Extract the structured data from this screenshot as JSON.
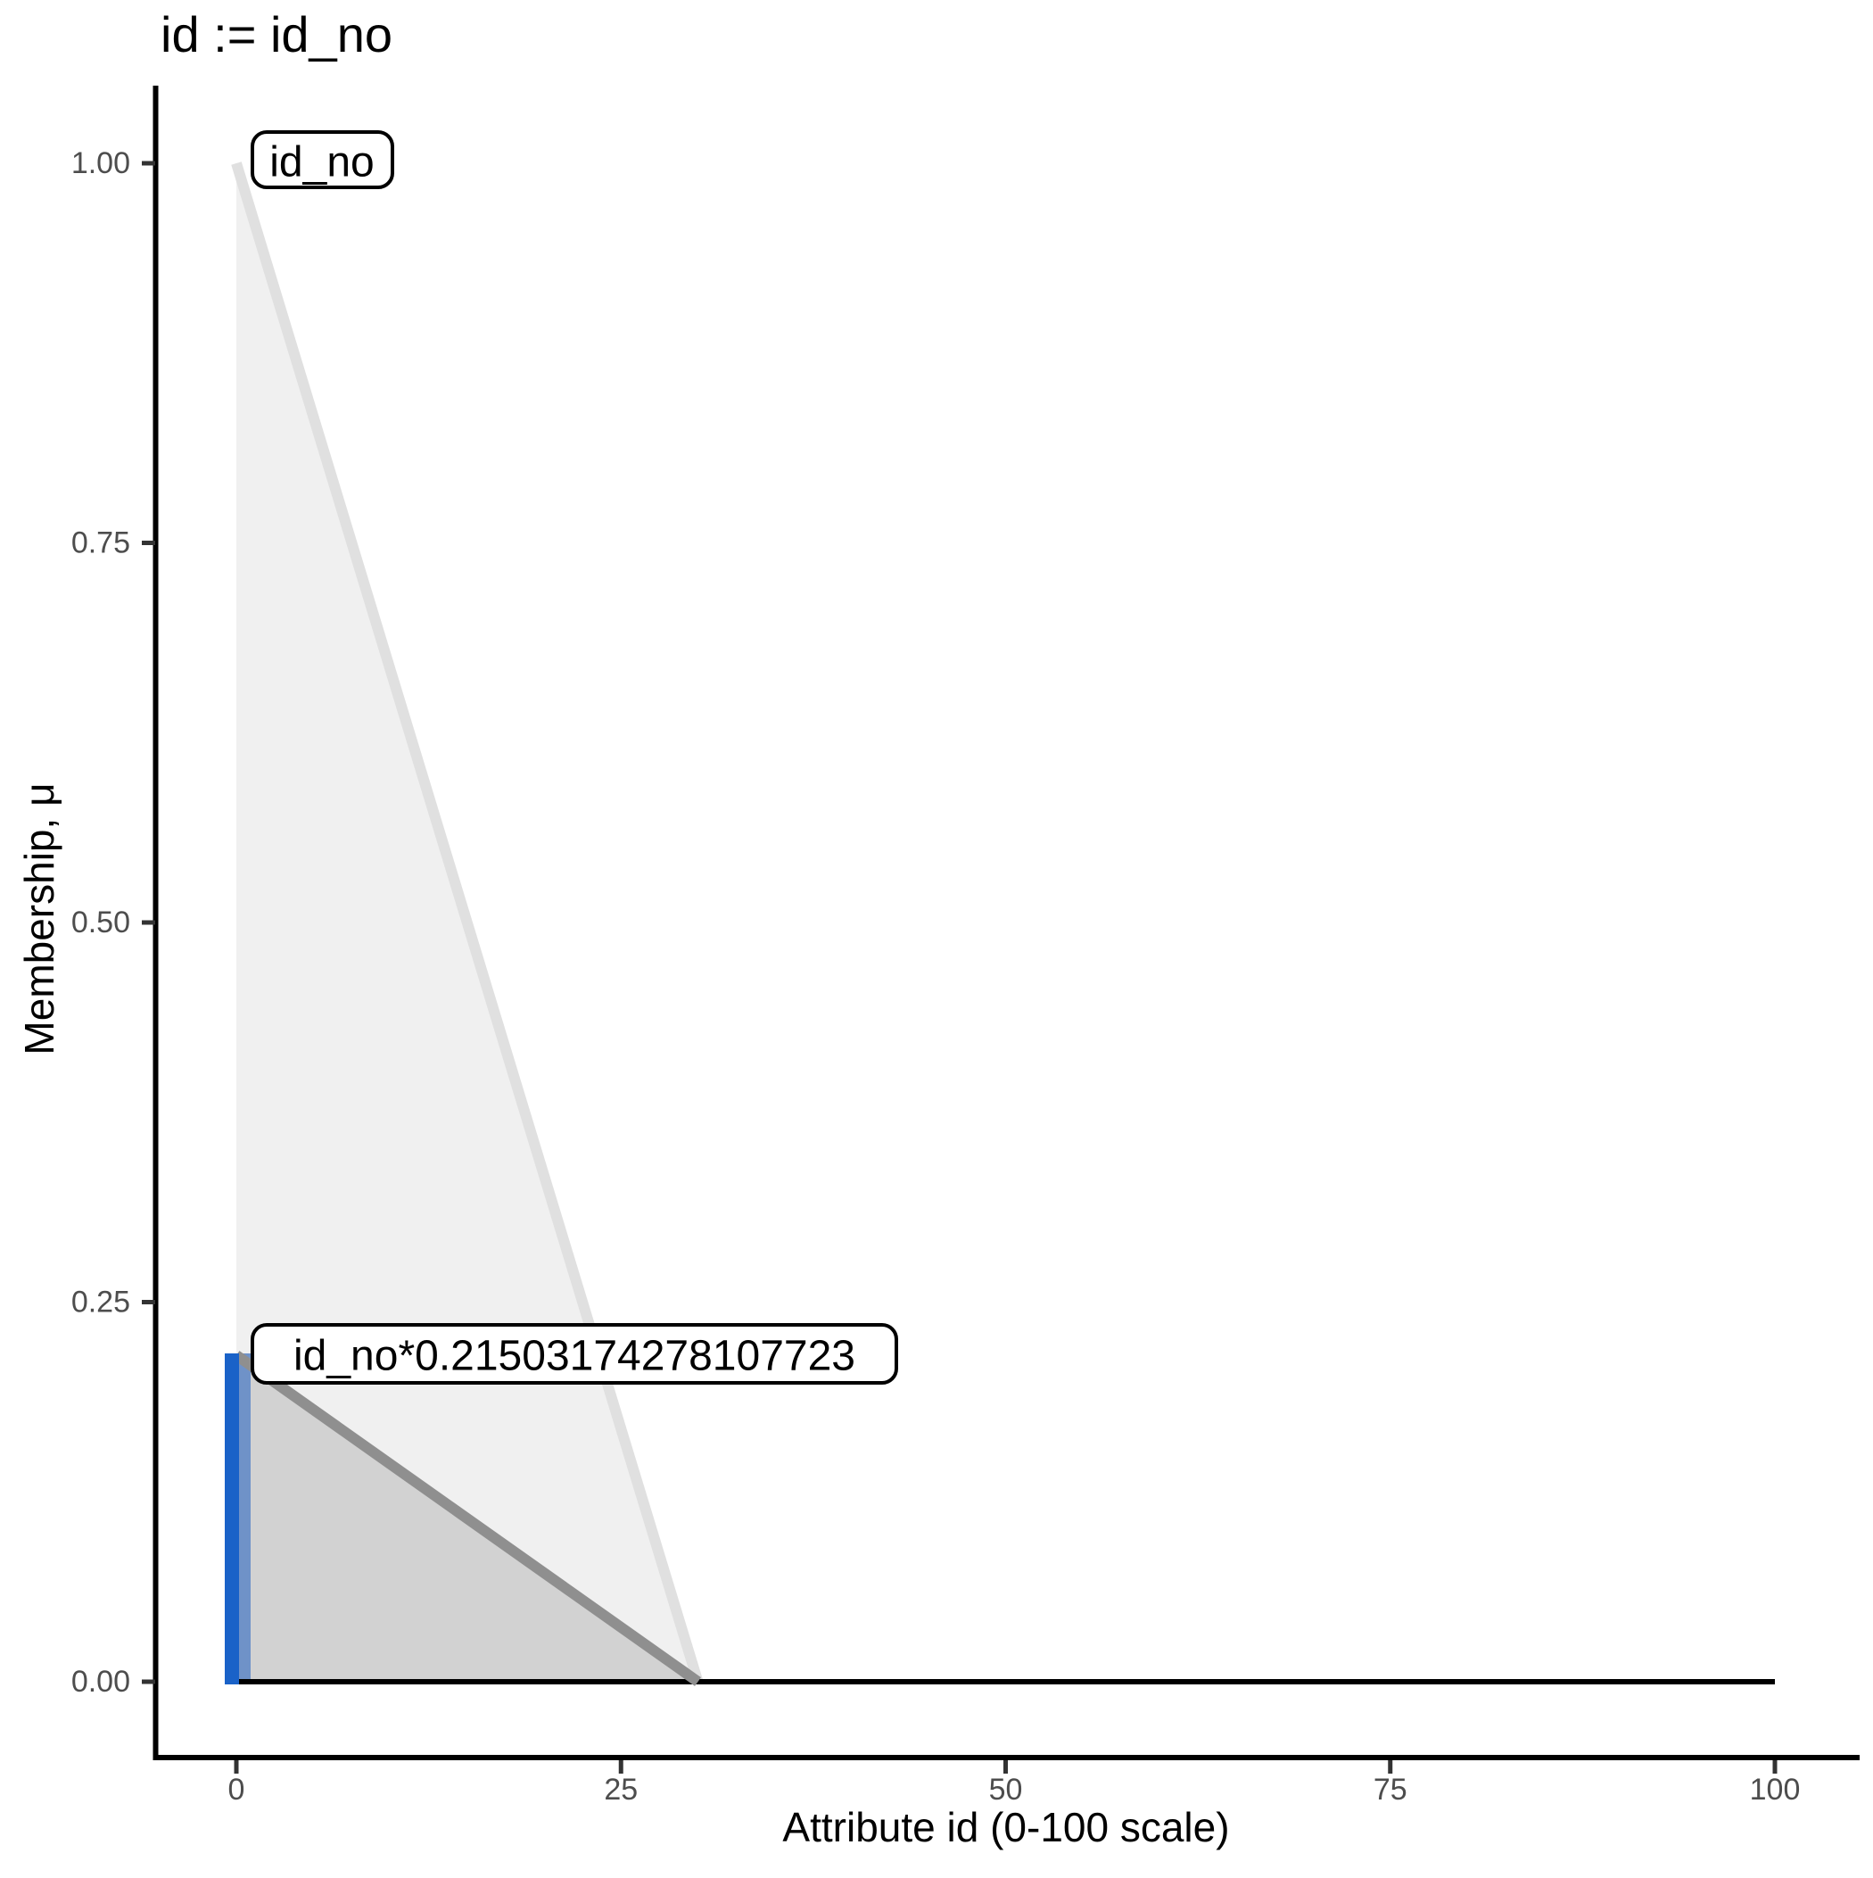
{
  "title": "id := id_no",
  "x_axis": {
    "label": "Attribute id (0-100 scale)",
    "tick_labels": [
      "0",
      "25",
      "50",
      "75",
      "100"
    ]
  },
  "y_axis": {
    "label": "Membership, μ",
    "tick_labels": [
      "0.00",
      "0.25",
      "0.50",
      "0.75",
      "1.00"
    ]
  },
  "annotations": {
    "set_label": "id_no",
    "scaled_set_label": "id_no*0.21503174278107723"
  },
  "colors": {
    "set_fill": "#f0f0f0",
    "set_edge": "#e0e0e0",
    "scaled_fill": "#d2d2d2",
    "scaled_edge": "#8f8f8f",
    "marker_blue": "#1a62c8",
    "marker_blue_light": "#6f92c8",
    "zero_line": "#000000",
    "axis_line": "#000000",
    "tick_mark": "#333333",
    "tick_text": "#4d4d4d"
  },
  "chart_data": {
    "type": "area",
    "title": "id := id_no",
    "xlabel": "Attribute id (0-100 scale)",
    "ylabel": "Membership, μ",
    "xlim": [
      0,
      100
    ],
    "ylim": [
      0,
      1
    ],
    "x_ticks": [
      0,
      25,
      50,
      75,
      100
    ],
    "y_ticks": [
      0,
      0.25,
      0.5,
      0.75,
      1
    ],
    "grid": false,
    "legend": "none",
    "series": [
      {
        "name": "id_no",
        "label": "id_no",
        "points": [
          [
            0,
            1
          ],
          [
            30,
            0
          ],
          [
            100,
            0
          ]
        ],
        "fill": "#f0f0f0",
        "edge": "#e0e0e0"
      },
      {
        "name": "id_no_scaled",
        "label": "id_no*0.21503174278107723",
        "points": [
          [
            0,
            0.21503174278107723
          ],
          [
            30,
            0
          ],
          [
            100,
            0
          ]
        ],
        "fill": "#d2d2d2",
        "edge": "#8f8f8f"
      }
    ],
    "zero_line": {
      "x_from": 0,
      "x_to": 100,
      "y": 0,
      "color": "#000000"
    },
    "value_marker": {
      "x": 0,
      "membership": 0.21503174278107723,
      "color": "#1a62c8",
      "light_color": "#6f92c8"
    }
  }
}
